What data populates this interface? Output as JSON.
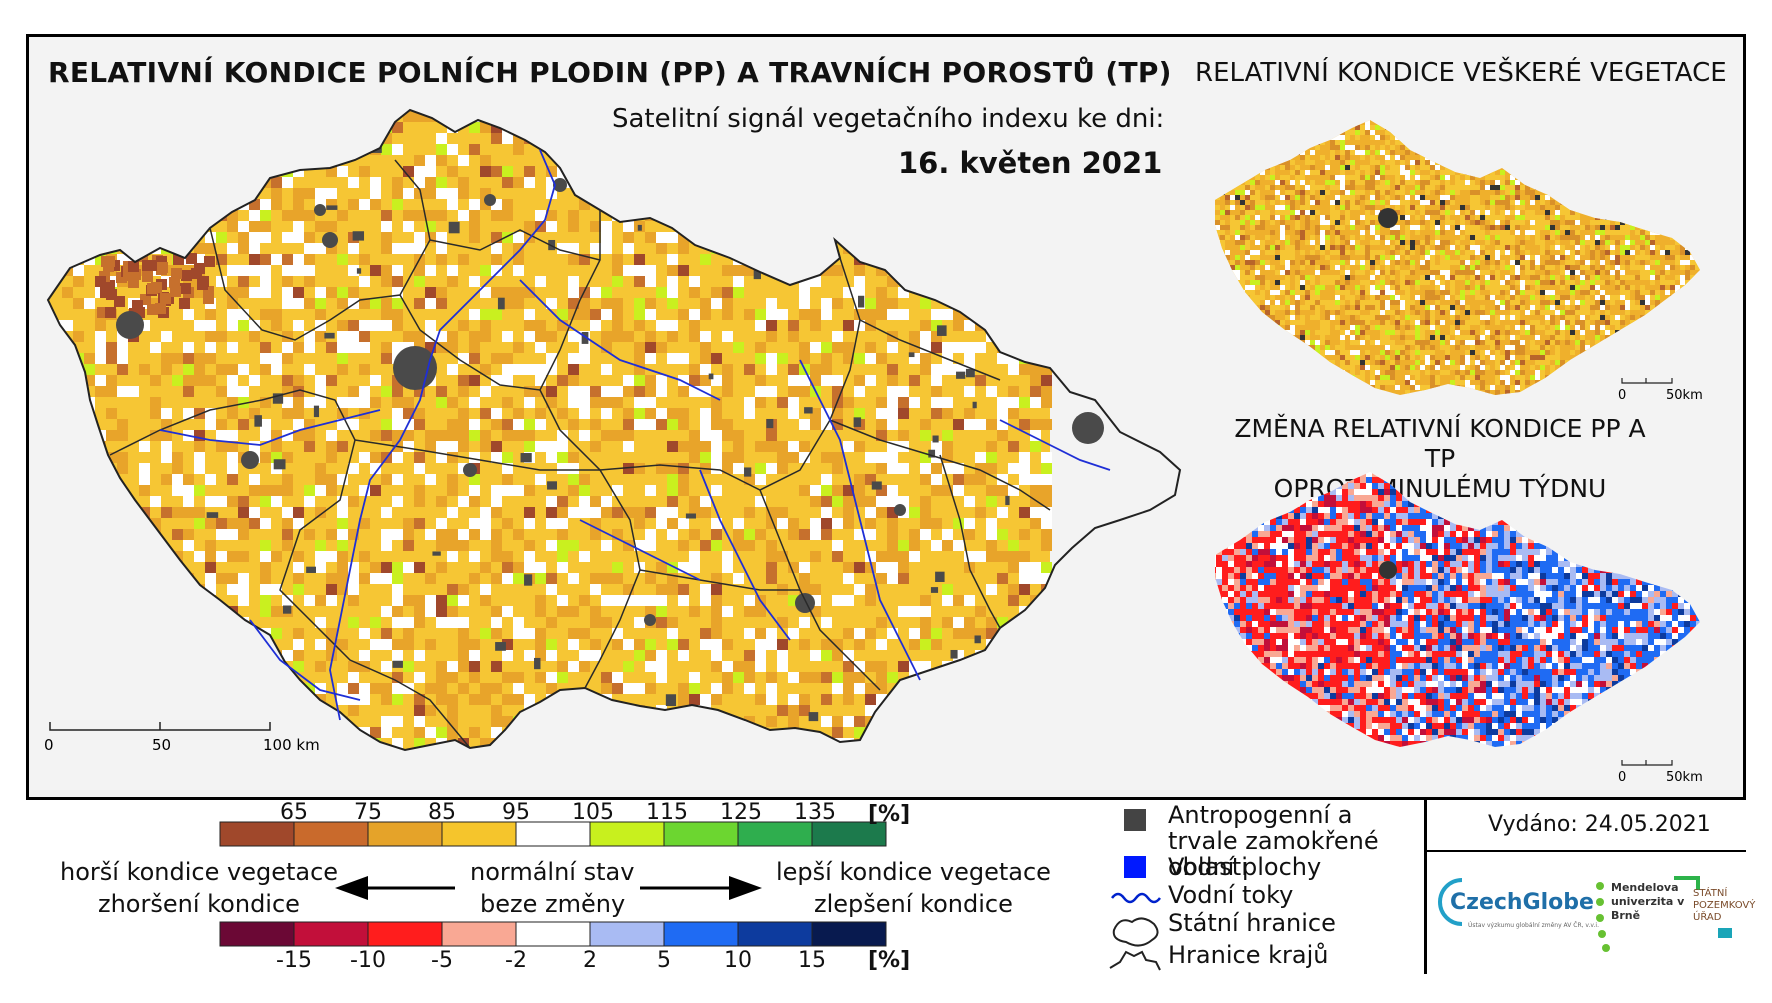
{
  "header": {
    "main_title": "RELATIVNÍ KONDICE POLNÍCH PLODIN (PP) A TRAVNÍCH POROSTŮ (TP)",
    "subtitle": "Satelitní signál vegetačního indexu ke dni:",
    "date": "16. květen 2021",
    "right_title": "RELATIVNÍ KONDICE VEŠKERÉ VEGETACE",
    "change_title_line1": "ZMĚNA RELATIVNÍ KONDICE PP A TP",
    "change_title_line2": "OPROTI MINULÉMU TÝDNU"
  },
  "scalebars": {
    "main": [
      "0",
      "50",
      "100 km"
    ],
    "small_top": [
      "0",
      "50km"
    ],
    "small_bottom": [
      "0",
      "50km"
    ]
  },
  "legend_condition": {
    "unit": "[%]",
    "ticks": [
      "65",
      "75",
      "85",
      "95",
      "105",
      "115",
      "125",
      "135"
    ],
    "colors": [
      "#a0482b",
      "#c96a2c",
      "#e5a329",
      "#f5c52c",
      "#ffffff",
      "#c8f01e",
      "#6cd630",
      "#2fae4e",
      "#1c7a4c"
    ]
  },
  "legend_change": {
    "unit": "[%]",
    "ticks": [
      "-15",
      "-10",
      "-5",
      "-2",
      "2",
      "5",
      "10",
      "15"
    ],
    "colors": [
      "#6b0835",
      "#c20f3a",
      "#ff1d1d",
      "#f9a894",
      "#ffffff",
      "#a9bbf3",
      "#1f6bf3",
      "#0d3b9e",
      "#081a4f"
    ]
  },
  "legend_text": {
    "worse_veg": "horší kondice vegetace",
    "worse_change": "zhoršení kondice",
    "normal": "normální stav",
    "no_change": "beze změny",
    "better_veg": "lepší kondice vegetace",
    "better_change": "zlepšení kondice"
  },
  "legend_symbols": {
    "anthropogenic": "Antropogenní a trvale zamokřené oblasti",
    "water": "Vodní plochy",
    "rivers": "Vodní toky",
    "state_border": "Státní hranice",
    "region_border": "Hranice krajů"
  },
  "issued": "Vydáno: 24.05.2021",
  "logos": {
    "czechglobe": "CzechGlobe",
    "czechglobe_sub": "Ústav výzkumu globální změny AV ČR, v.v.i.",
    "mendel": "Mendelova univerzita v Brně",
    "spu": "STÁTNÍ POZEMKOVÝ ÚŘAD"
  }
}
